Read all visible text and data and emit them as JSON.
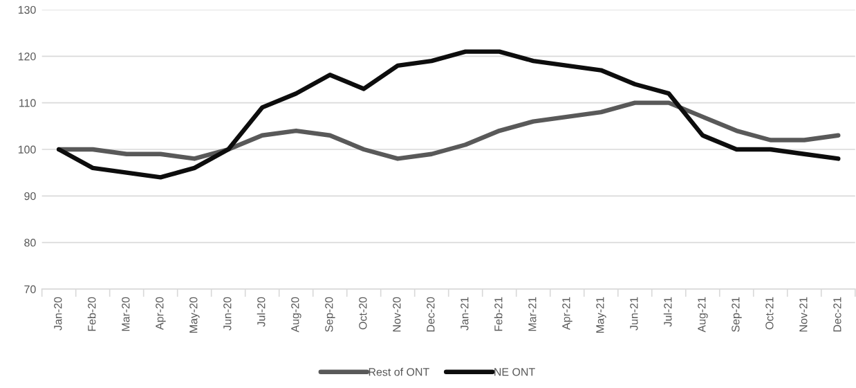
{
  "chart_data": {
    "type": "line",
    "categories": [
      "Jan-20",
      "Feb-20",
      "Mar-20",
      "Apr-20",
      "May-20",
      "Jun-20",
      "Jul-20",
      "Aug-20",
      "Sep-20",
      "Oct-20",
      "Nov-20",
      "Dec-20",
      "Jan-21",
      "Feb-21",
      "Mar-21",
      "Apr-21",
      "May-21",
      "Jun-21",
      "Jul-21",
      "Aug-21",
      "Sep-21",
      "Oct-21",
      "Nov-21",
      "Dec-21"
    ],
    "series": [
      {
        "name": "Rest of ONT",
        "color": "#595959",
        "values": [
          100,
          100,
          99,
          99,
          98,
          100,
          103,
          104,
          103,
          100,
          98,
          99,
          101,
          104,
          106,
          107,
          108,
          110,
          110,
          107,
          104,
          102,
          102,
          103
        ]
      },
      {
        "name": "NE ONT",
        "color": "#0d0d0d",
        "values": [
          100,
          96,
          95,
          94,
          96,
          100,
          109,
          112,
          116,
          113,
          118,
          119,
          121,
          121,
          119,
          118,
          117,
          114,
          112,
          103,
          100,
          100,
          99,
          98
        ]
      }
    ],
    "ylim": [
      70,
      130
    ],
    "yticks": [
      70,
      80,
      90,
      100,
      110,
      120,
      130
    ],
    "grid": "y",
    "legend": "bottom",
    "line_style": "solid"
  }
}
